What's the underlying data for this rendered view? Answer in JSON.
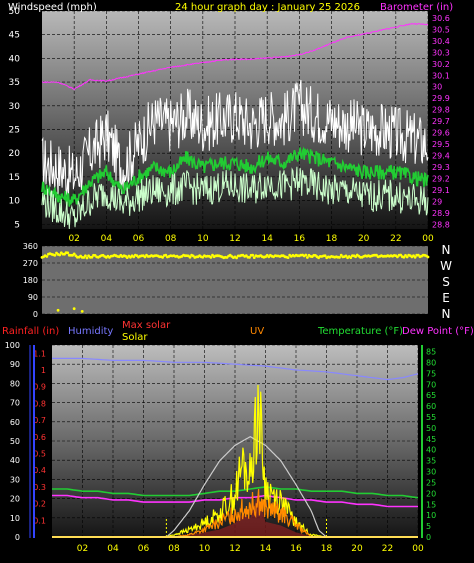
{
  "chart_data": [
    {
      "type": "line",
      "title": "24 hour graph day : January 25 2026",
      "left_axis_label": "Windspeed (mph)",
      "right_axis_label": "Barometer (in)",
      "x_ticks": [
        "02",
        "04",
        "06",
        "08",
        "10",
        "12",
        "14",
        "16",
        "18",
        "20",
        "22",
        "00"
      ],
      "left_ticks": [
        "5",
        "10",
        "15",
        "20",
        "25",
        "30",
        "35",
        "40",
        "45",
        "50"
      ],
      "right_ticks": [
        "28.8",
        "28.9",
        "29",
        "29.1",
        "29.2",
        "29.3",
        "29.4",
        "29.5",
        "29.6",
        "29.7",
        "29.8",
        "29.9",
        "30",
        "30.1",
        "30.2",
        "30.3",
        "30.4",
        "30.5",
        "30.6"
      ],
      "ylim": [
        4,
        50
      ],
      "ylim_right": [
        28.76,
        30.66
      ],
      "series": [
        {
          "color": "#ffffff",
          "x": [
            0,
            1,
            2,
            3,
            4,
            5,
            6,
            7,
            8,
            9,
            10,
            11,
            12,
            13,
            14,
            15,
            16,
            17,
            18,
            19,
            20,
            21,
            22,
            23,
            24
          ],
          "values": [
            18,
            17,
            15,
            20,
            24,
            17,
            22,
            27,
            26,
            28,
            26,
            27,
            28,
            26,
            28,
            27,
            30,
            28,
            27,
            26,
            25,
            25,
            24,
            23,
            22
          ]
        },
        {
          "color": "#22cc33",
          "x": [
            0,
            1,
            2,
            3,
            4,
            5,
            6,
            7,
            8,
            9,
            10,
            11,
            12,
            13,
            14,
            15,
            16,
            17,
            18,
            19,
            20,
            21,
            22,
            23,
            24
          ],
          "values": [
            13,
            11,
            10,
            14,
            16,
            12,
            15,
            17,
            16,
            19,
            17,
            18,
            18,
            17,
            19,
            18,
            20,
            19,
            18,
            17,
            16,
            16,
            16,
            15,
            14
          ]
        },
        {
          "color": "#ccffcc",
          "x": [
            0,
            1,
            2,
            3,
            4,
            5,
            6,
            7,
            8,
            9,
            10,
            11,
            12,
            13,
            14,
            15,
            16,
            17,
            18,
            19,
            20,
            21,
            22,
            23,
            24
          ],
          "values": [
            10,
            8,
            6,
            10,
            12,
            9,
            11,
            12,
            12,
            13,
            12,
            13,
            13,
            12,
            14,
            13,
            14,
            13,
            12,
            12,
            11,
            11,
            11,
            10,
            10
          ]
        },
        {
          "color": "#ff33ff",
          "axis": "right",
          "x": [
            0,
            1,
            2,
            3,
            4,
            5,
            6,
            7,
            8,
            9,
            10,
            11,
            12,
            13,
            14,
            15,
            16,
            17,
            18,
            19,
            20,
            21,
            22,
            23,
            24
          ],
          "values": [
            30.04,
            30.04,
            29.98,
            30.06,
            30.05,
            30.08,
            30.11,
            30.14,
            30.17,
            30.19,
            30.21,
            30.23,
            30.24,
            30.24,
            30.25,
            30.26,
            30.28,
            30.32,
            30.38,
            30.43,
            30.46,
            30.49,
            30.52,
            30.55,
            30.54
          ]
        }
      ]
    },
    {
      "type": "scatter",
      "title": "",
      "y_ticks": [
        "0",
        "90",
        "180",
        "270",
        "360"
      ],
      "compass_labels": [
        "N",
        "W",
        "S",
        "E",
        "N"
      ],
      "x_ticks": [
        "02",
        "04",
        "06",
        "08",
        "10",
        "12",
        "14",
        "16",
        "18",
        "20",
        "22",
        "00"
      ],
      "ylim": [
        0,
        360
      ],
      "series": [
        {
          "color": "#ffff00",
          "x": [
            0,
            0.5,
            1,
            1.5,
            2,
            2.5,
            3,
            4,
            5,
            6,
            7,
            8,
            9,
            10,
            11,
            12,
            13,
            14,
            15,
            16,
            17,
            18,
            19,
            20,
            21,
            22,
            23,
            24
          ],
          "values": [
            295,
            315,
            318,
            320,
            312,
            300,
            305,
            306,
            305,
            305,
            304,
            305,
            306,
            305,
            305,
            304,
            305,
            306,
            305,
            306,
            305,
            304,
            305,
            306,
            305,
            306,
            307,
            306
          ]
        }
      ]
    },
    {
      "type": "line",
      "title": "",
      "legend": [
        "Rainfall (in)",
        "Humidity",
        "Max solar",
        "Solar",
        "UV",
        "Temperature (°F)",
        "Dew Point (°F)"
      ],
      "x_ticks": [
        "02",
        "04",
        "06",
        "08",
        "10",
        "12",
        "14",
        "16",
        "18",
        "20",
        "22",
        "00"
      ],
      "left_ticks_humidity": [
        "0",
        "10",
        "20",
        "30",
        "40",
        "50",
        "60",
        "70",
        "80",
        "90",
        "100"
      ],
      "left_ticks_rain": [
        "0.1",
        "0.2",
        "0.3",
        "0.4",
        "0.5",
        "0.6",
        "0.7",
        "0.8",
        "0.9",
        "1",
        "1.1"
      ],
      "right_ticks": [
        "0",
        "5",
        "10",
        "15",
        "20",
        "25",
        "30",
        "35",
        "40",
        "45",
        "50",
        "55",
        "60",
        "65",
        "70",
        "75",
        "80",
        "85"
      ],
      "ylim_humidity": [
        0,
        100
      ],
      "ylim_temp": [
        0,
        88
      ],
      "series": [
        {
          "name": "Humidity",
          "color": "#8888ff",
          "axis": "humidity",
          "x": [
            0,
            2,
            4,
            6,
            8,
            10,
            12,
            14,
            16,
            18,
            20,
            21,
            22,
            23,
            24
          ],
          "values": [
            93,
            93,
            92,
            92,
            91,
            91,
            90,
            89,
            87,
            86,
            84,
            83,
            82,
            83,
            85
          ]
        },
        {
          "name": "Temperature (°F)",
          "color": "#22cc33",
          "axis": "temp",
          "x": [
            0,
            1,
            2,
            3,
            4,
            5,
            6,
            7,
            8,
            9,
            10,
            11,
            12,
            13,
            14,
            15,
            16,
            17,
            18,
            19,
            20,
            21,
            22,
            23,
            24
          ],
          "values": [
            22,
            22,
            21,
            21,
            20,
            20,
            19,
            19,
            19,
            19,
            20,
            21,
            21,
            22,
            23,
            22,
            22,
            21,
            21,
            21,
            20,
            20,
            19,
            19,
            18
          ]
        },
        {
          "name": "Dew Point (°F)",
          "color": "#ff33ff",
          "axis": "temp",
          "x": [
            0,
            1,
            2,
            3,
            4,
            5,
            6,
            7,
            8,
            9,
            10,
            11,
            12,
            13,
            14,
            15,
            16,
            17,
            18,
            19,
            20,
            21,
            22,
            23,
            24
          ],
          "values": [
            19,
            19,
            18,
            18,
            17,
            17,
            16,
            16,
            16,
            16,
            17,
            17,
            18,
            18,
            19,
            18,
            17,
            17,
            16,
            16,
            15,
            15,
            14,
            14,
            14
          ]
        },
        {
          "name": "Max solar",
          "color": "#cccccc",
          "axis": "temp",
          "x": [
            7.5,
            8,
            9,
            10,
            11,
            12,
            13,
            14,
            15,
            16,
            17,
            17.5,
            18
          ],
          "values": [
            0,
            3,
            12,
            24,
            35,
            42,
            46,
            42,
            35,
            24,
            12,
            3,
            0
          ]
        },
        {
          "name": "Solar",
          "color": "#ffff00",
          "axis": "temp",
          "x": [
            7.5,
            8,
            9,
            10,
            11,
            12,
            12.5,
            13,
            13.5,
            14,
            15,
            16,
            17,
            18
          ],
          "values": [
            0,
            1,
            3,
            6,
            10,
            18,
            30,
            25,
            57,
            20,
            15,
            6,
            1,
            0
          ]
        },
        {
          "name": "UV",
          "color": "#ff8800",
          "axis": "temp",
          "x": [
            8,
            9,
            10,
            11,
            12,
            13,
            13.5,
            14,
            15,
            16,
            17
          ],
          "values": [
            0,
            1,
            3,
            6,
            10,
            13,
            15,
            12,
            10,
            5,
            0
          ]
        }
      ]
    }
  ]
}
